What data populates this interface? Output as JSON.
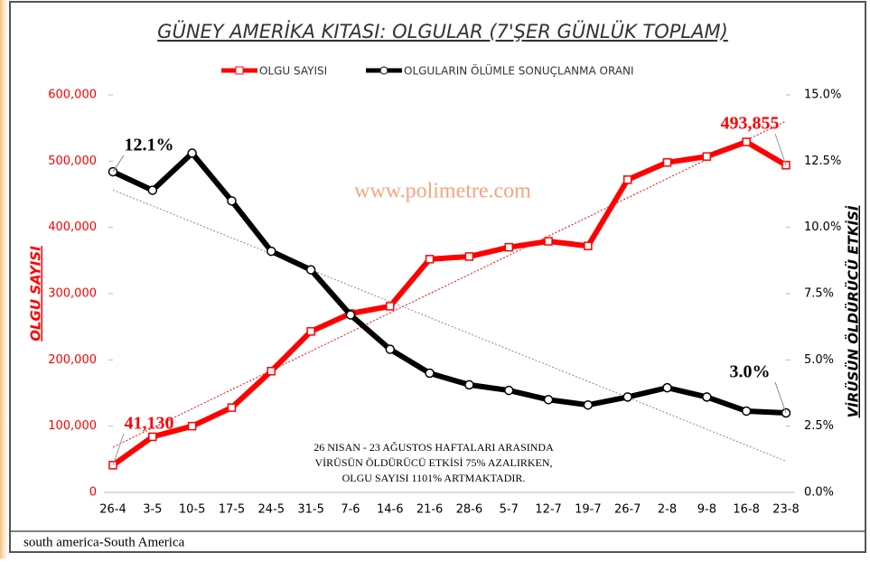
{
  "chart_data": {
    "type": "line",
    "title": "GÜNEY AMERİKA KITASI: OLGULAR (7'ŞER GÜNLÜK TOPLAM)",
    "ylabel": "OLGU SAYISI",
    "y2label": "VİRÜSÜN ÖLDÜRÜCÜ ETKİSİ",
    "watermark": "www.polimetre.com",
    "annotation": [
      "26 NISAN - 23 AĞUSTOS  HAFTALARI ARASINDA",
      "VİRÜSÜN  ÖLDÜRÜCÜ  ETKİSİ 75% AZALIRKEN,",
      "OLGU SAYISI  1101%  ARTMAKTADIR."
    ],
    "footer": "south america-South America",
    "categories": [
      "26-4",
      "3-5",
      "10-5",
      "17-5",
      "24-5",
      "31-5",
      "7-6",
      "14-6",
      "21-6",
      "28-6",
      "5-7",
      "12-7",
      "19-7",
      "26-7",
      "2-8",
      "9-8",
      "16-8",
      "23-8"
    ],
    "series": [
      {
        "name": "OLGU SAYISI",
        "color": "#ff0000",
        "axis": "y",
        "values": [
          41130,
          84000,
          100000,
          128000,
          183000,
          243000,
          270000,
          281000,
          352000,
          356000,
          370000,
          379000,
          372000,
          472000,
          498000,
          507000,
          529000,
          493855
        ],
        "value_labels": [
          "41,130",
          null,
          null,
          null,
          null,
          null,
          null,
          null,
          null,
          null,
          null,
          null,
          null,
          null,
          null,
          null,
          null,
          "493,855"
        ]
      },
      {
        "name": "OLGULARIN ÖLÜMLE SONUÇLANMA ORANI",
        "color": "#000000",
        "axis": "y2",
        "values": [
          12.1,
          11.4,
          12.8,
          11.0,
          9.1,
          8.4,
          6.7,
          5.4,
          4.5,
          4.06,
          3.85,
          3.5,
          3.3,
          3.6,
          3.95,
          3.6,
          3.07,
          3.0
        ],
        "value_labels": [
          "12.1%",
          null,
          null,
          null,
          null,
          null,
          null,
          null,
          null,
          null,
          null,
          null,
          null,
          null,
          null,
          null,
          null,
          "3.0%"
        ]
      }
    ],
    "ylim": [
      0,
      600000
    ],
    "yticks": [
      0,
      {
        "value": 100000,
        "label": "100,000"
      },
      {
        "value": 200000,
        "label": "200,000"
      },
      {
        "value": 300000,
        "label": "300,000"
      },
      {
        "value": 400000,
        "label": "400,000"
      },
      {
        "value": 500000,
        "label": "500,000"
      },
      {
        "value": 600000,
        "label": "600,000"
      }
    ],
    "y2lim": [
      0,
      15
    ],
    "y2ticks": [
      {
        "value": 0,
        "label": "0.0%"
      },
      {
        "value": 2.5,
        "label": "2.5%"
      },
      {
        "value": 5,
        "label": "5.0%"
      },
      {
        "value": 7.5,
        "label": "7.5%"
      },
      {
        "value": 10,
        "label": "10.0%"
      },
      {
        "value": 12.5,
        "label": "12.5%"
      },
      {
        "value": 15,
        "label": "15.0%"
      }
    ],
    "trendlines": true,
    "legend": "top"
  }
}
